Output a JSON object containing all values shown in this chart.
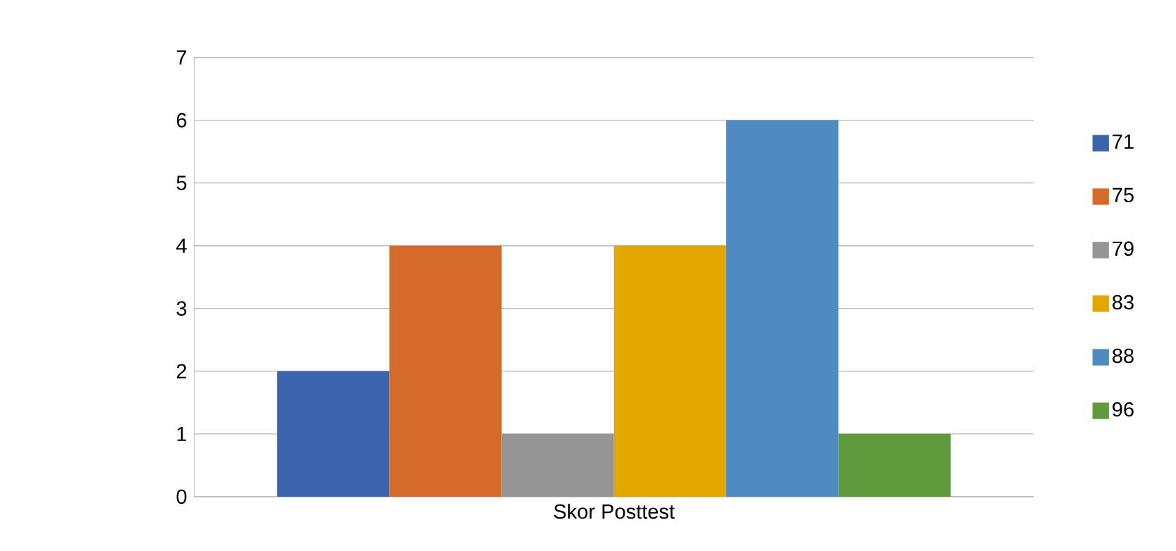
{
  "chart_data": {
    "type": "bar",
    "categories": [
      "Skor Posttest"
    ],
    "series": [
      {
        "name": "71",
        "color": "#3c64ae",
        "values": [
          2
        ]
      },
      {
        "name": "75",
        "color": "#d46b2a",
        "values": [
          4
        ]
      },
      {
        "name": "79",
        "color": "#959595",
        "values": [
          1
        ]
      },
      {
        "name": "83",
        "color": "#e2a800",
        "values": [
          4
        ]
      },
      {
        "name": "88",
        "color": "#4f8bc0",
        "values": [
          6
        ]
      },
      {
        "name": "96",
        "color": "#5f9a3c",
        "values": [
          1
        ]
      }
    ],
    "ylim": [
      0,
      7
    ],
    "yticks": [
      0,
      1,
      2,
      3,
      4,
      5,
      6,
      7
    ],
    "grid": "y",
    "legend": "right"
  }
}
